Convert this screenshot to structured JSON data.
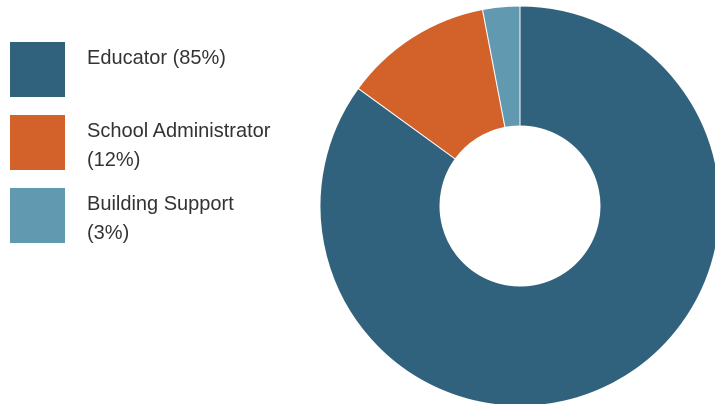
{
  "chart_data": {
    "type": "pie",
    "donut": true,
    "categories": [
      "Educator",
      "School Administrator",
      "Building Support"
    ],
    "values": [
      85,
      12,
      3
    ],
    "unit": "%",
    "colors": [
      "#31627d",
      "#d2622a",
      "#6199b1"
    ],
    "legend_labels": [
      "Educator (85%)",
      "School Administrator\n(12%)",
      "Building Support\n (3%)"
    ],
    "legend_position": "left",
    "title": ""
  }
}
